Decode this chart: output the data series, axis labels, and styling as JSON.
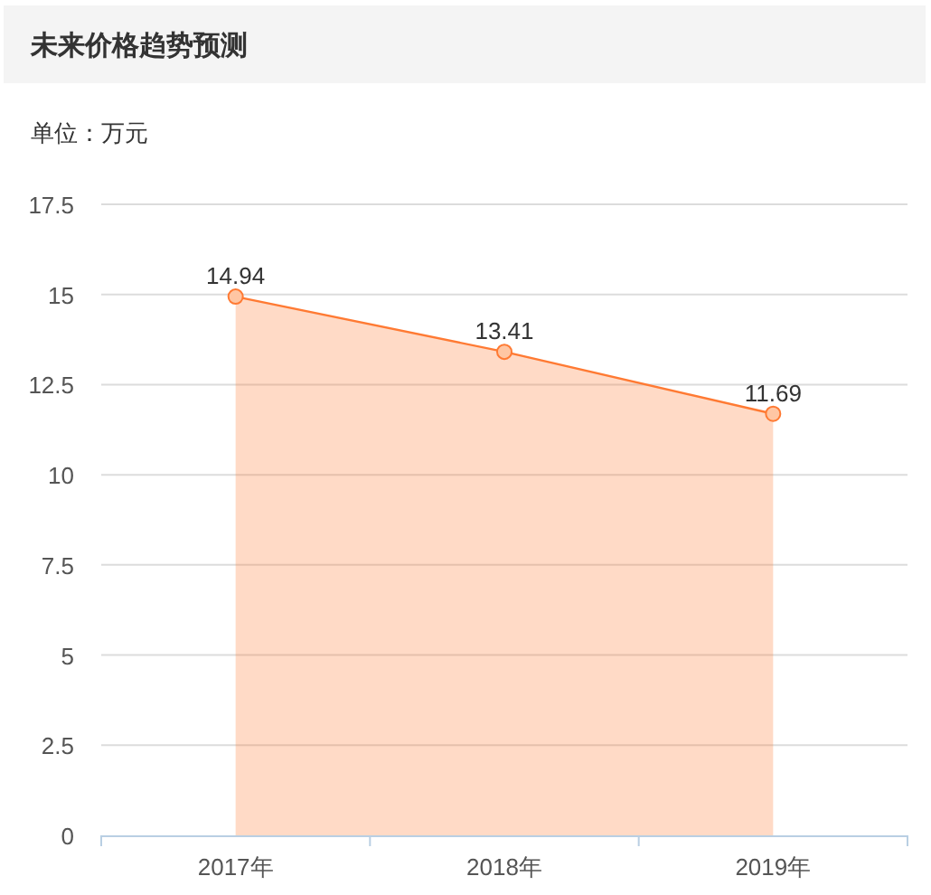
{
  "chart_data": {
    "type": "area",
    "title": "未来价格趋势预测",
    "annotations": [
      "单位：万元"
    ],
    "categories": [
      "2017年",
      "2018年",
      "2019年"
    ],
    "series": [
      {
        "color": "#ff7a33",
        "values": [
          14.94,
          13.41,
          11.69
        ]
      }
    ],
    "ylim": [
      0,
      17.5
    ],
    "yticks": [
      0,
      2.5,
      5,
      7.5,
      10,
      12.5,
      15,
      17.5
    ],
    "grid": "y",
    "marker": "circle",
    "line_style": "solid",
    "data_labels": true
  }
}
